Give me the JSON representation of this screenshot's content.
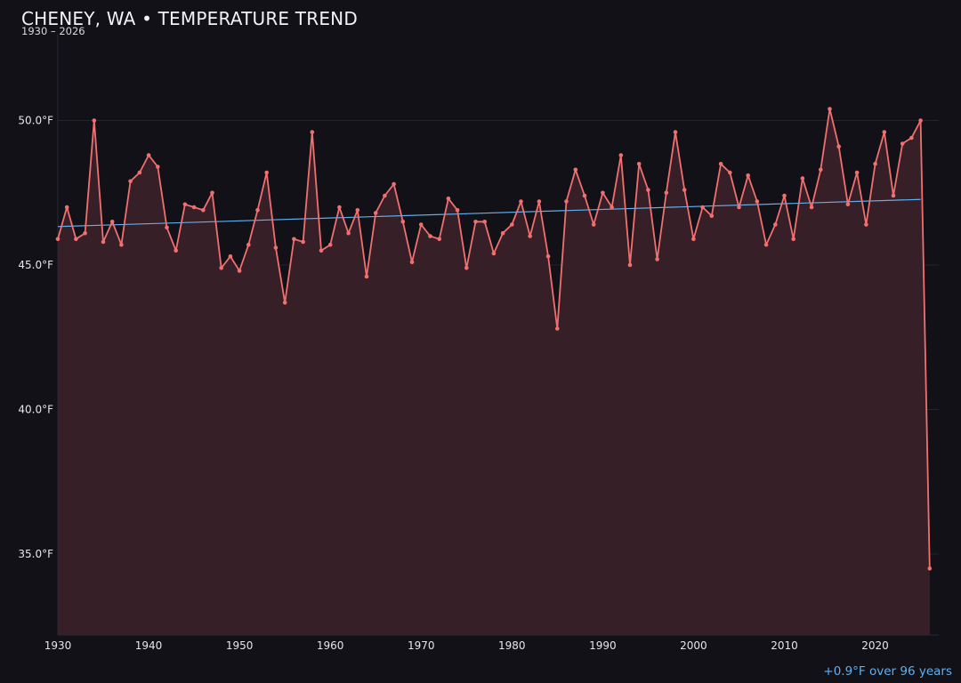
{
  "header": {
    "title": "CHENEY, WA • TEMPERATURE TREND",
    "subtitle": "1930 – 2026"
  },
  "footnote": "+0.9°F over 96 years",
  "colors": {
    "background": "#121117",
    "line": "#f07070",
    "fill": "#371f27",
    "trend": "#5fb0ee",
    "grid": "#26232a",
    "tick_text": "#e6e6ea"
  },
  "chart_data": {
    "type": "line",
    "title": "CHENEY, WA • TEMPERATURE TREND",
    "subtitle": "1930 – 2026",
    "xlabel": "",
    "ylabel": "",
    "xlim": [
      1930,
      2027
    ],
    "ylim": [
      32.2,
      53
    ],
    "x_ticks": [
      1930,
      1940,
      1950,
      1960,
      1970,
      1980,
      1990,
      2000,
      2010,
      2020
    ],
    "y_ticks": [
      35,
      40,
      45,
      50
    ],
    "y_tick_labels": [
      "35.0°F",
      "40.0°F",
      "45.0°F",
      "50.0°F"
    ],
    "grid": true,
    "area_fill": true,
    "series": [
      {
        "x": [
          1930,
          1931,
          1932,
          1933,
          1934,
          1935,
          1936,
          1937,
          1938,
          1939,
          1940,
          1941,
          1942,
          1943,
          1944,
          1945,
          1946,
          1947,
          1948,
          1949,
          1950,
          1951,
          1952,
          1953,
          1954,
          1955,
          1956,
          1957,
          1958,
          1959,
          1960,
          1961,
          1962,
          1963,
          1964,
          1965,
          1966,
          1967,
          1968,
          1969,
          1970,
          1971,
          1972,
          1973,
          1974,
          1975,
          1976,
          1977,
          1978,
          1979,
          1980,
          1981,
          1982,
          1983,
          1984,
          1985,
          1986,
          1987,
          1988,
          1989,
          1990,
          1991,
          1992,
          1993,
          1994,
          1995,
          1996,
          1997,
          1998,
          1999,
          2000,
          2001,
          2002,
          2003,
          2004,
          2005,
          2006,
          2007,
          2008,
          2009,
          2010,
          2011,
          2012,
          2013,
          2014,
          2015,
          2016,
          2017,
          2018,
          2019,
          2020,
          2021,
          2022,
          2023,
          2024,
          2025,
          2026
        ],
        "values": [
          45.9,
          47.0,
          45.9,
          46.1,
          50.0,
          45.8,
          46.5,
          45.7,
          47.9,
          48.2,
          48.8,
          48.4,
          46.3,
          45.5,
          47.1,
          47.0,
          46.9,
          47.5,
          44.9,
          45.3,
          44.8,
          45.7,
          46.9,
          48.2,
          45.6,
          43.7,
          45.9,
          45.8,
          49.6,
          45.5,
          45.7,
          47.0,
          46.1,
          46.9,
          44.6,
          46.8,
          47.4,
          47.8,
          46.5,
          45.1,
          46.4,
          46.0,
          45.9,
          47.3,
          46.9,
          44.9,
          46.5,
          46.5,
          45.4,
          46.1,
          46.4,
          47.2,
          46.0,
          47.2,
          45.3,
          42.8,
          47.2,
          48.3,
          47.4,
          46.4,
          47.5,
          47.0,
          48.8,
          45.0,
          48.5,
          47.6,
          45.2,
          47.5,
          49.6,
          47.6,
          45.9,
          47.0,
          46.7,
          48.5,
          48.2,
          47.0,
          48.1,
          47.2,
          45.7,
          46.4,
          47.4,
          45.9,
          48.0,
          47.0,
          48.3,
          50.4,
          49.1,
          47.1,
          48.2,
          46.4,
          48.5,
          49.6,
          47.4,
          49.2,
          49.4,
          50.0,
          34.5
        ]
      }
    ],
    "trend_line": {
      "x": [
        1930,
        2025
      ],
      "values": [
        46.33,
        47.27
      ]
    }
  }
}
